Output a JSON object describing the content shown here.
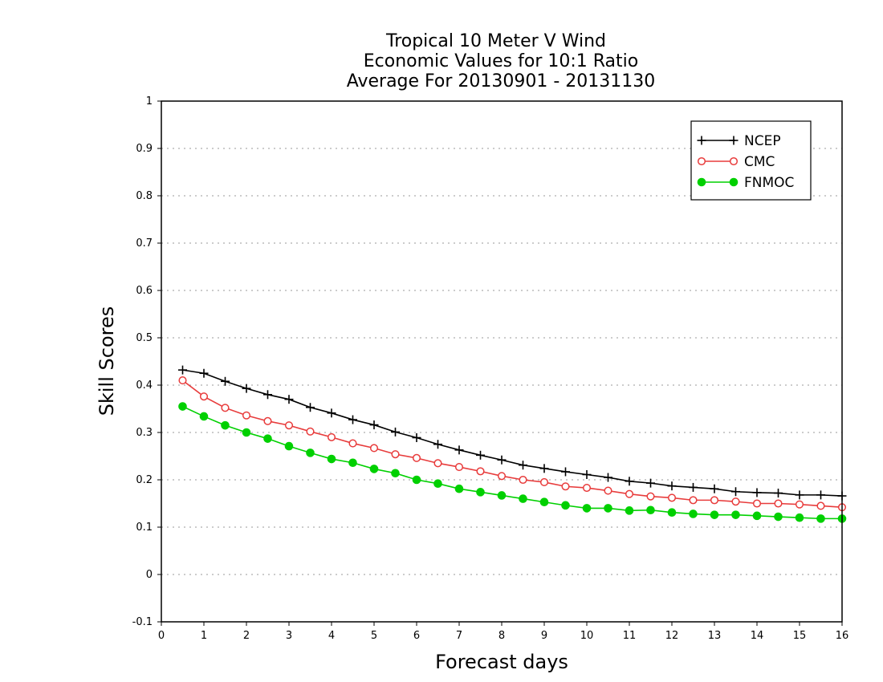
{
  "chart_data": {
    "type": "line",
    "title_lines": [
      "Tropical 10 Meter V Wind",
      "Economic Values for 10:1 Ratio",
      "Average For 20130901 - 20131130"
    ],
    "xlabel": "Forecast days",
    "ylabel": "Skill Scores",
    "xlim": [
      0,
      16
    ],
    "ylim": [
      -0.1,
      1
    ],
    "x_ticks": [
      "0",
      "1",
      "2",
      "3",
      "4",
      "5",
      "6",
      "7",
      "8",
      "9",
      "10",
      "11",
      "12",
      "13",
      "14",
      "15",
      "16"
    ],
    "y_ticks": [
      "-0.1",
      "0",
      "0.1",
      "0.2",
      "0.3",
      "0.4",
      "0.5",
      "0.6",
      "0.7",
      "0.8",
      "0.9",
      "1"
    ],
    "grid": true,
    "legend_position": "top-right",
    "x": [
      0.5,
      1,
      1.5,
      2,
      2.5,
      3,
      3.5,
      4,
      4.5,
      5,
      5.5,
      6,
      6.5,
      7,
      7.5,
      8,
      8.5,
      9,
      9.5,
      10,
      10.5,
      11,
      11.5,
      12,
      12.5,
      13,
      13.5,
      14,
      14.5,
      15,
      15.5,
      16
    ],
    "series": [
      {
        "name": "NCEP",
        "color": "#000000",
        "marker": "plus",
        "values": [
          0.432,
          0.425,
          0.408,
          0.393,
          0.38,
          0.37,
          0.353,
          0.341,
          0.327,
          0.316,
          0.301,
          0.289,
          0.275,
          0.263,
          0.252,
          0.242,
          0.231,
          0.224,
          0.217,
          0.211,
          0.205,
          0.197,
          0.193,
          0.187,
          0.184,
          0.181,
          0.175,
          0.173,
          0.172,
          0.168,
          0.168,
          0.166
        ]
      },
      {
        "name": "CMC",
        "color": "#e83c3c",
        "marker": "open-circle",
        "values": [
          0.41,
          0.376,
          0.352,
          0.336,
          0.324,
          0.315,
          0.302,
          0.29,
          0.277,
          0.267,
          0.254,
          0.246,
          0.235,
          0.227,
          0.218,
          0.208,
          0.2,
          0.195,
          0.186,
          0.183,
          0.177,
          0.17,
          0.165,
          0.162,
          0.157,
          0.157,
          0.154,
          0.15,
          0.15,
          0.148,
          0.145,
          0.142
        ]
      },
      {
        "name": "FNMOC",
        "color": "#00d000",
        "marker": "filled-circle",
        "values": [
          0.355,
          0.334,
          0.315,
          0.3,
          0.287,
          0.271,
          0.257,
          0.244,
          0.236,
          0.223,
          0.214,
          0.2,
          0.192,
          0.181,
          0.174,
          0.167,
          0.16,
          0.153,
          0.146,
          0.14,
          0.14,
          0.135,
          0.136,
          0.131,
          0.128,
          0.126,
          0.126,
          0.124,
          0.122,
          0.12,
          0.118,
          0.118
        ]
      }
    ]
  }
}
